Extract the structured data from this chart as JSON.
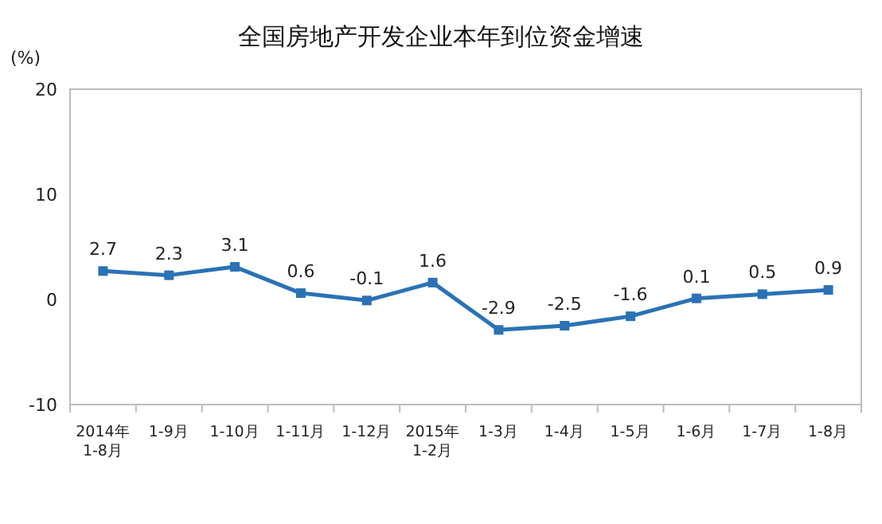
{
  "chart_data": {
    "type": "line",
    "title": "全国房地产开发企业本年到位资金增速",
    "ylabel": "(%)",
    "categories": [
      "2014年\n1-8月",
      "1-9月",
      "1-10月",
      "1-11月",
      "1-12月",
      "2015年\n1-2月",
      "1-3月",
      "1-4月",
      "1-5月",
      "1-6月",
      "1-7月",
      "1-8月"
    ],
    "series": [
      {
        "color": "#2a72b5",
        "values": [
          2.7,
          2.3,
          3.1,
          0.6,
          -0.1,
          1.6,
          -2.9,
          -2.5,
          -1.6,
          0.1,
          0.5,
          0.9
        ]
      }
    ],
    "ylim": [
      -10,
      20
    ],
    "yticks": [
      -10,
      0,
      10,
      20
    ],
    "data_labels": true,
    "marker": "square",
    "grid": false
  }
}
